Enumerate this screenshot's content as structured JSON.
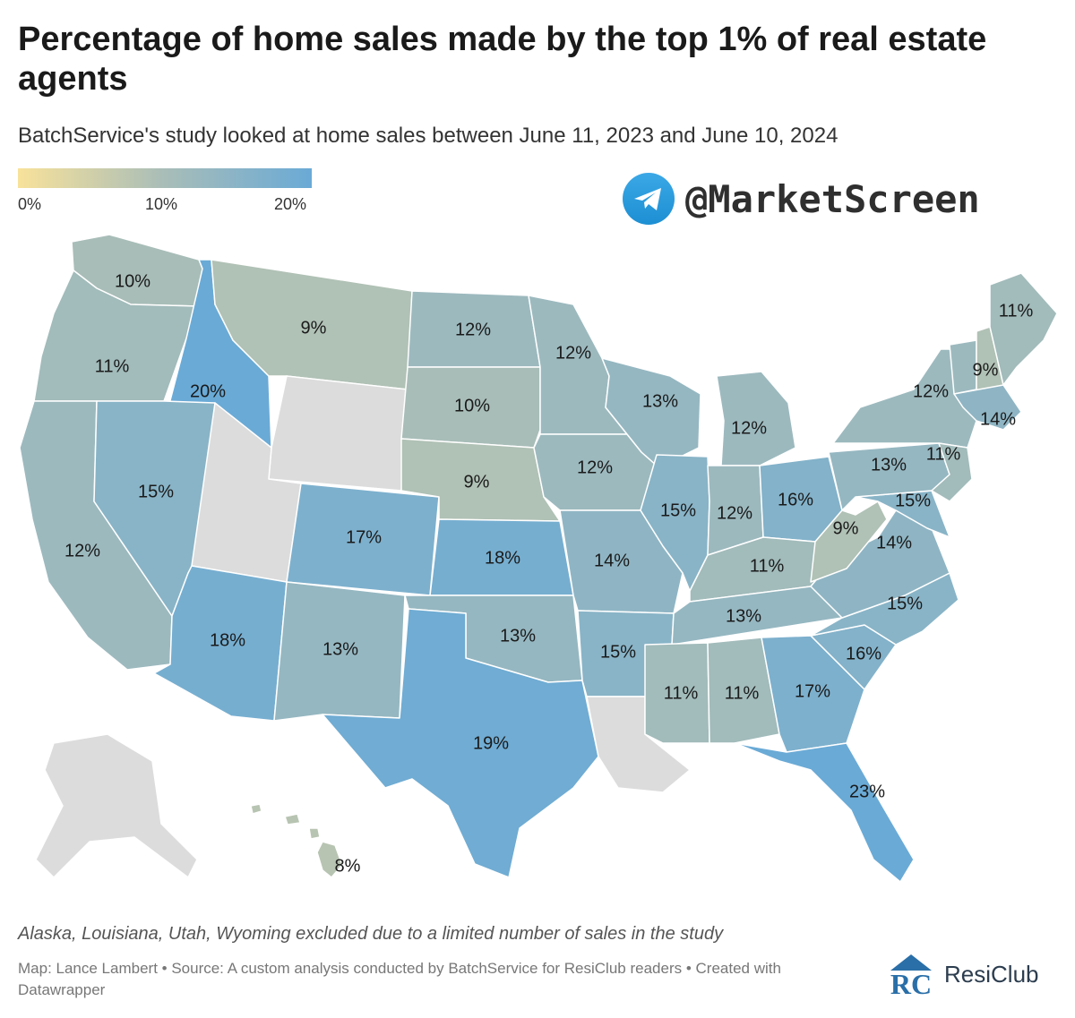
{
  "title": "Percentage of home sales made by the top 1% of real estate agents",
  "subtitle": "BatchService's study looked at home sales between June 11, 2023 and June 10, 2024",
  "legend": {
    "ticks": [
      "0%",
      "10%",
      "20%"
    ],
    "min_color": "#f8e29b",
    "mid_color": "#a8bdb8",
    "max_color": "#6aaad6"
  },
  "watermark": {
    "text": "@MarketScreen",
    "icon": "telegram-icon"
  },
  "map": {
    "excluded_color": "#dcdcdc",
    "states": [
      {
        "id": "WA",
        "label": "10%",
        "value": 10
      },
      {
        "id": "OR",
        "label": "11%",
        "value": 11
      },
      {
        "id": "CA",
        "label": "12%",
        "value": 12
      },
      {
        "id": "ID",
        "label": "20%",
        "value": 20
      },
      {
        "id": "NV",
        "label": "15%",
        "value": 15
      },
      {
        "id": "MT",
        "label": "9%",
        "value": 9
      },
      {
        "id": "WY",
        "label": "",
        "value": null
      },
      {
        "id": "UT",
        "label": "",
        "value": null
      },
      {
        "id": "AZ",
        "label": "18%",
        "value": 18
      },
      {
        "id": "CO",
        "label": "17%",
        "value": 17
      },
      {
        "id": "NM",
        "label": "13%",
        "value": 13
      },
      {
        "id": "ND",
        "label": "12%",
        "value": 12
      },
      {
        "id": "SD",
        "label": "10%",
        "value": 10
      },
      {
        "id": "NE",
        "label": "9%",
        "value": 9
      },
      {
        "id": "KS",
        "label": "18%",
        "value": 18
      },
      {
        "id": "OK",
        "label": "13%",
        "value": 13
      },
      {
        "id": "TX",
        "label": "19%",
        "value": 19
      },
      {
        "id": "MN",
        "label": "12%",
        "value": 12
      },
      {
        "id": "IA",
        "label": "12%",
        "value": 12
      },
      {
        "id": "MO",
        "label": "14%",
        "value": 14
      },
      {
        "id": "AR",
        "label": "15%",
        "value": 15
      },
      {
        "id": "LA",
        "label": "",
        "value": null
      },
      {
        "id": "WI",
        "label": "13%",
        "value": 13
      },
      {
        "id": "IL",
        "label": "15%",
        "value": 15
      },
      {
        "id": "MI",
        "label": "12%",
        "value": 12
      },
      {
        "id": "IN",
        "label": "12%",
        "value": 12
      },
      {
        "id": "OH",
        "label": "16%",
        "value": 16
      },
      {
        "id": "KY",
        "label": "11%",
        "value": 11
      },
      {
        "id": "TN",
        "label": "13%",
        "value": 13
      },
      {
        "id": "MS",
        "label": "11%",
        "value": 11
      },
      {
        "id": "AL",
        "label": "11%",
        "value": 11
      },
      {
        "id": "GA",
        "label": "17%",
        "value": 17
      },
      {
        "id": "FL",
        "label": "23%",
        "value": 23
      },
      {
        "id": "SC",
        "label": "16%",
        "value": 16
      },
      {
        "id": "NC",
        "label": "15%",
        "value": 15
      },
      {
        "id": "VA",
        "label": "14%",
        "value": 14
      },
      {
        "id": "WV",
        "label": "9%",
        "value": 9
      },
      {
        "id": "MD",
        "label": "15%",
        "value": 15
      },
      {
        "id": "PA",
        "label": "13%",
        "value": 13
      },
      {
        "id": "NY",
        "label": "12%",
        "value": 12
      },
      {
        "id": "NJ",
        "label": "11%",
        "value": 11
      },
      {
        "id": "VT",
        "label": "",
        "value": 12
      },
      {
        "id": "NH",
        "label": "9%",
        "value": 9
      },
      {
        "id": "ME",
        "label": "11%",
        "value": 11
      },
      {
        "id": "MA",
        "label": "14%",
        "value": 14
      },
      {
        "id": "AK",
        "label": "",
        "value": null
      },
      {
        "id": "HI",
        "label": "8%",
        "value": 8
      }
    ]
  },
  "note": "Alaska, Louisiana, Utah, Wyoming excluded due to a limited number of sales in the study",
  "credit": "Map: Lance Lambert • Source: A custom analysis conducted by BatchService for ResiClub readers • Created with Datawrapper",
  "logo": {
    "text": "ResiClub",
    "monogram": "RC"
  }
}
